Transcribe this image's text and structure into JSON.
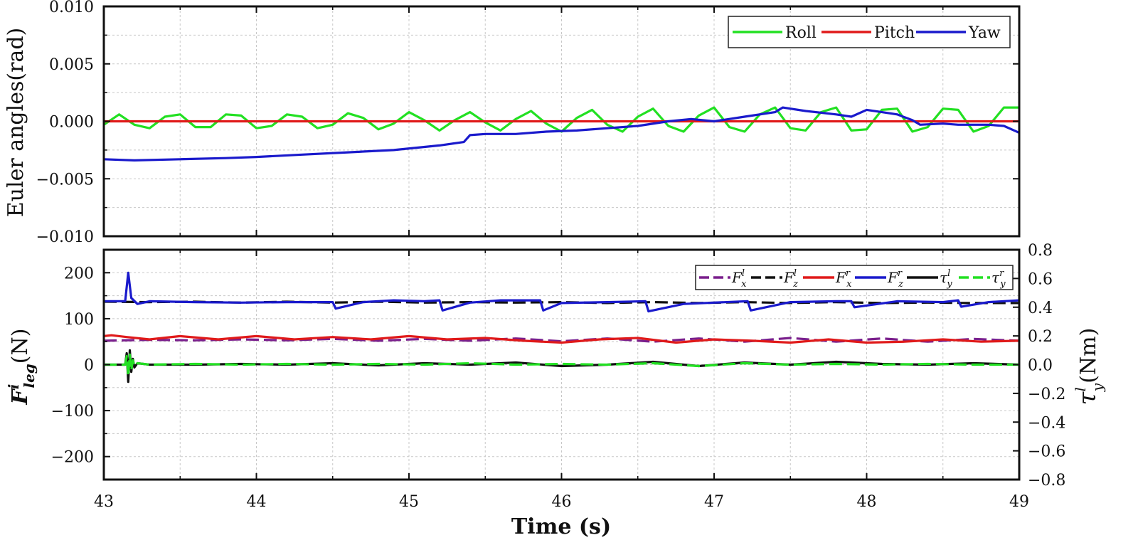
{
  "chart_data": [
    {
      "id": "top",
      "type": "line",
      "ylabel": "Euler angles(rad)",
      "xlim": [
        43,
        49
      ],
      "ylim": [
        -0.01,
        0.01
      ],
      "x_ticks": [
        43,
        44,
        45,
        46,
        47,
        48,
        49
      ],
      "y_ticks": [
        -0.01,
        -0.005,
        0.0,
        0.005,
        0.01
      ],
      "y_tick_labels": [
        "−0.010",
        "−0.005",
        "0.000",
        "0.005",
        "0.010"
      ],
      "grid": true,
      "legend_position": "top-right",
      "series": [
        {
          "name": "Roll",
          "color": "#22e022",
          "x": [
            43.0,
            43.1,
            43.2,
            43.3,
            43.4,
            43.5,
            43.6,
            43.7,
            43.8,
            43.9,
            44.0,
            44.1,
            44.2,
            44.3,
            44.4,
            44.5,
            44.6,
            44.7,
            44.8,
            44.9,
            45.0,
            45.1,
            45.2,
            45.3,
            45.4,
            45.5,
            45.6,
            45.7,
            45.8,
            45.9,
            46.0,
            46.1,
            46.2,
            46.3,
            46.4,
            46.5,
            46.6,
            46.7,
            46.8,
            46.9,
            47.0,
            47.1,
            47.2,
            47.3,
            47.4,
            47.5,
            47.6,
            47.7,
            47.8,
            47.9,
            48.0,
            48.1,
            48.2,
            48.3,
            48.4,
            48.5,
            48.6,
            48.7,
            48.8,
            48.9,
            49.0
          ],
          "y": [
            -0.0003,
            0.0006,
            -0.0003,
            -0.0006,
            0.0004,
            0.0006,
            -0.0005,
            -0.0005,
            0.0006,
            0.0005,
            -0.0006,
            -0.0004,
            0.0006,
            0.0004,
            -0.0006,
            -0.0003,
            0.0007,
            0.0003,
            -0.0007,
            -0.0002,
            0.0008,
            0.0001,
            -0.0008,
            0.0001,
            0.0008,
            -0.0001,
            -0.0008,
            0.0002,
            0.0009,
            -0.0002,
            -0.0009,
            0.0003,
            0.001,
            -0.0003,
            -0.0009,
            0.0004,
            0.0011,
            -0.0004,
            -0.0009,
            0.0005,
            0.0012,
            -0.0005,
            -0.0009,
            0.0006,
            0.0012,
            -0.0006,
            -0.0008,
            0.0008,
            0.0012,
            -0.0008,
            -0.0007,
            0.001,
            0.0011,
            -0.0009,
            -0.0005,
            0.0011,
            0.001,
            -0.0009,
            -0.0004,
            0.0012,
            0.0012
          ]
        },
        {
          "name": "Pitch",
          "color": "#e01a1a",
          "x": [
            43,
            44,
            45,
            46,
            47,
            48,
            49
          ],
          "y": [
            0.0,
            0.0,
            0.0,
            0.0,
            0.0,
            0.0,
            0.0
          ]
        },
        {
          "name": "Yaw",
          "color": "#1a1acc",
          "x": [
            43.0,
            43.2,
            43.5,
            43.8,
            44.0,
            44.3,
            44.6,
            44.9,
            45.2,
            45.36,
            45.4,
            45.5,
            45.7,
            45.9,
            46.1,
            46.3,
            46.5,
            46.7,
            46.85,
            47.0,
            47.2,
            47.4,
            47.45,
            47.6,
            47.8,
            47.9,
            48.0,
            48.1,
            48.2,
            48.3,
            48.35,
            48.5,
            48.6,
            48.8,
            48.9,
            49.0
          ],
          "y": [
            -0.0033,
            -0.0034,
            -0.0033,
            -0.0032,
            -0.0031,
            -0.0029,
            -0.0027,
            -0.0025,
            -0.0021,
            -0.0018,
            -0.0012,
            -0.0011,
            -0.0011,
            -0.0009,
            -0.0008,
            -0.0006,
            -0.0004,
            0.0,
            0.0002,
            0.0,
            0.0004,
            0.0008,
            0.0012,
            0.0009,
            0.0006,
            0.0004,
            0.001,
            0.0008,
            0.0006,
            0.0001,
            -0.0003,
            -0.0002,
            -0.0003,
            -0.0003,
            -0.0004,
            -0.001
          ]
        }
      ]
    },
    {
      "id": "bottom",
      "type": "line",
      "ylabel": "F^i_leg(N)",
      "ylabel_parts": {
        "base": "F",
        "sup": "i",
        "sub": "leg",
        "unit": "(N)"
      },
      "y2label_parts": {
        "base": "τ",
        "sup": "l",
        "sub": "y",
        "unit": "(Nm)"
      },
      "xlabel": "Time (s)",
      "xlim": [
        43,
        49
      ],
      "ylim": [
        -250,
        250
      ],
      "y2lim": [
        -0.8,
        0.8
      ],
      "x_ticks": [
        43,
        44,
        45,
        46,
        47,
        48,
        49
      ],
      "x_tick_labels": [
        "43",
        "44",
        "45",
        "46",
        "47",
        "48",
        "49"
      ],
      "y_ticks": [
        -200,
        -100,
        0,
        100,
        200
      ],
      "y_tick_labels": [
        "−200",
        "−100",
        "0",
        "100",
        "200"
      ],
      "y2_ticks": [
        -0.8,
        -0.6,
        -0.4,
        -0.2,
        0.0,
        0.2,
        0.4,
        0.6,
        0.8
      ],
      "y2_tick_labels": [
        "−0.8",
        "−0.6",
        "−0.4",
        "−0.2",
        "0.0",
        "0.2",
        "0.4",
        "0.6",
        "0.8"
      ],
      "grid": true,
      "legend_position": "top-right",
      "series": [
        {
          "name": "F_x^l",
          "label_base": "F",
          "label_sup": "l",
          "label_sub": "x",
          "color": "#7a1f8c",
          "dashed": true,
          "x": [
            43.0,
            43.3,
            43.6,
            43.9,
            44.2,
            44.5,
            44.8,
            45.1,
            45.4,
            45.7,
            46.0,
            46.3,
            46.6,
            46.9,
            47.2,
            47.5,
            47.8,
            48.1,
            48.4,
            48.7,
            49.0
          ],
          "y": [
            52,
            54,
            53,
            55,
            53,
            56,
            52,
            56,
            52,
            57,
            51,
            57,
            50,
            57,
            50,
            58,
            50,
            57,
            50,
            56,
            52
          ]
        },
        {
          "name": "F_z^l",
          "label_base": "F",
          "label_sup": "l",
          "label_sub": "z",
          "color": "#111111",
          "dashed": true,
          "x": [
            43.0,
            43.3,
            43.6,
            43.9,
            44.2,
            44.5,
            44.8,
            45.1,
            45.4,
            45.7,
            46.0,
            46.3,
            46.6,
            46.9,
            47.2,
            47.5,
            47.8,
            48.1,
            48.4,
            48.7,
            49.0
          ],
          "y": [
            137,
            136,
            137,
            135,
            137,
            135,
            137,
            135,
            136,
            135,
            136,
            134,
            136,
            134,
            136,
            134,
            136,
            134,
            135,
            134,
            134
          ]
        },
        {
          "name": "F_x^r",
          "label_base": "F",
          "label_sup": "r",
          "label_sub": "x",
          "color": "#e01a1a",
          "dashed": false,
          "x": [
            43.0,
            43.05,
            43.15,
            43.3,
            43.5,
            43.75,
            44.0,
            44.25,
            44.5,
            44.75,
            45.0,
            45.25,
            45.5,
            45.75,
            46.0,
            46.25,
            46.5,
            46.75,
            47.0,
            47.25,
            47.5,
            47.75,
            48.0,
            48.25,
            48.5,
            48.75,
            49.0
          ],
          "y": [
            62,
            64,
            60,
            55,
            62,
            55,
            62,
            55,
            60,
            55,
            62,
            55,
            58,
            52,
            48,
            55,
            58,
            48,
            55,
            52,
            48,
            55,
            48,
            50,
            55,
            50,
            52
          ]
        },
        {
          "name": "F_z^r",
          "label_base": "F",
          "label_sup": "r",
          "label_sub": "z",
          "color": "#1a1acc",
          "dashed": false,
          "x": [
            43.0,
            43.14,
            43.16,
            43.18,
            43.22,
            43.3,
            43.6,
            43.9,
            44.2,
            44.5,
            44.52,
            44.7,
            44.9,
            45.1,
            45.2,
            45.22,
            45.4,
            45.6,
            45.86,
            45.88,
            46.0,
            46.3,
            46.55,
            46.57,
            46.8,
            47.0,
            47.22,
            47.24,
            47.5,
            47.8,
            47.9,
            47.92,
            48.2,
            48.5,
            48.6,
            48.62,
            48.8,
            49.0
          ],
          "y": [
            138,
            138,
            200,
            145,
            132,
            138,
            136,
            135,
            136,
            136,
            122,
            136,
            140,
            138,
            140,
            118,
            135,
            140,
            140,
            118,
            134,
            136,
            138,
            116,
            132,
            135,
            138,
            118,
            136,
            138,
            138,
            125,
            138,
            136,
            140,
            126,
            136,
            140
          ]
        },
        {
          "name": "τ_y^l",
          "label_base": "τ",
          "label_sup": "l",
          "label_sub": "y",
          "color": "#111111",
          "dashed": false,
          "x": [
            43.0,
            43.14,
            43.15,
            43.16,
            43.17,
            43.18,
            43.19,
            43.2,
            43.22,
            43.3,
            43.6,
            43.9,
            44.2,
            44.5,
            44.8,
            45.1,
            45.4,
            45.7,
            46.0,
            46.3,
            46.6,
            46.9,
            47.2,
            47.5,
            47.8,
            48.1,
            48.4,
            48.7,
            49.0
          ],
          "y": [
            0.0,
            0.0,
            0.08,
            -0.12,
            0.1,
            -0.05,
            0.04,
            -0.02,
            0.01,
            0.0,
            0.0,
            0.005,
            0.0,
            0.01,
            -0.005,
            0.01,
            0.0,
            0.015,
            -0.01,
            0.0,
            0.02,
            -0.01,
            0.015,
            0.0,
            0.02,
            0.005,
            0.0,
            0.01,
            0.0
          ]
        },
        {
          "name": "τ_y^r",
          "label_base": "τ",
          "label_sup": "r",
          "label_sub": "y",
          "color": "#22e022",
          "dashed": true,
          "x": [
            43.0,
            43.14,
            43.15,
            43.16,
            43.17,
            43.18,
            43.19,
            43.2,
            43.22,
            43.3,
            43.6,
            43.9,
            44.2,
            44.5,
            44.8,
            45.1,
            45.4,
            45.7,
            46.0,
            46.3,
            46.6,
            46.9,
            47.2,
            47.5,
            47.8,
            48.1,
            48.4,
            48.7,
            49.0
          ],
          "y": [
            0.0,
            0.0,
            0.06,
            -0.08,
            0.07,
            -0.04,
            0.03,
            -0.01,
            0.01,
            0.0,
            0.005,
            0.0,
            0.005,
            0.0,
            0.005,
            0.0,
            0.01,
            0.0,
            0.005,
            0.0,
            0.01,
            -0.01,
            0.01,
            0.0,
            0.005,
            0.0,
            0.005,
            0.0,
            0.0
          ]
        }
      ]
    }
  ]
}
